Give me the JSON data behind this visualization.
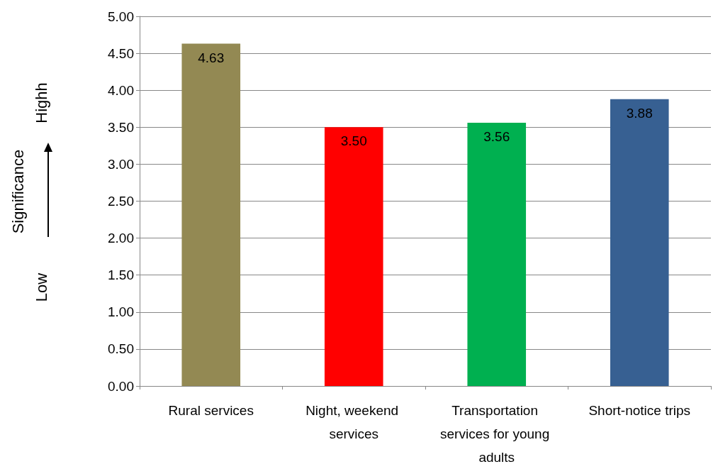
{
  "chart_data": {
    "type": "bar",
    "annotations": [
      "Significance",
      "Low",
      "Highh"
    ],
    "categories": [
      "Rural services",
      "Night, weekend services",
      "Transportation services for young adults",
      "Short-notice trips"
    ],
    "values": [
      4.63,
      3.5,
      3.56,
      3.88
    ],
    "colors": [
      "#938953",
      "#ff0000",
      "#00b050",
      "#376092"
    ],
    "value_labels": [
      "4.63",
      "3.50",
      "3.56",
      "3.88"
    ],
    "ylim": [
      0,
      5
    ],
    "yticks": [
      {
        "value": 0,
        "label": "0.00"
      },
      {
        "value": 0.5,
        "label": "0.50"
      },
      {
        "value": 1,
        "label": "1.00"
      },
      {
        "value": 1.5,
        "label": "1.50"
      },
      {
        "value": 2,
        "label": "2.00"
      },
      {
        "value": 2.5,
        "label": "2.50"
      },
      {
        "value": 3,
        "label": "3.00"
      },
      {
        "value": 3.5,
        "label": "3.50"
      },
      {
        "value": 4,
        "label": "4.00"
      },
      {
        "value": 4.5,
        "label": "4.50"
      },
      {
        "value": 5,
        "label": "5.00"
      }
    ],
    "grid": "y"
  }
}
